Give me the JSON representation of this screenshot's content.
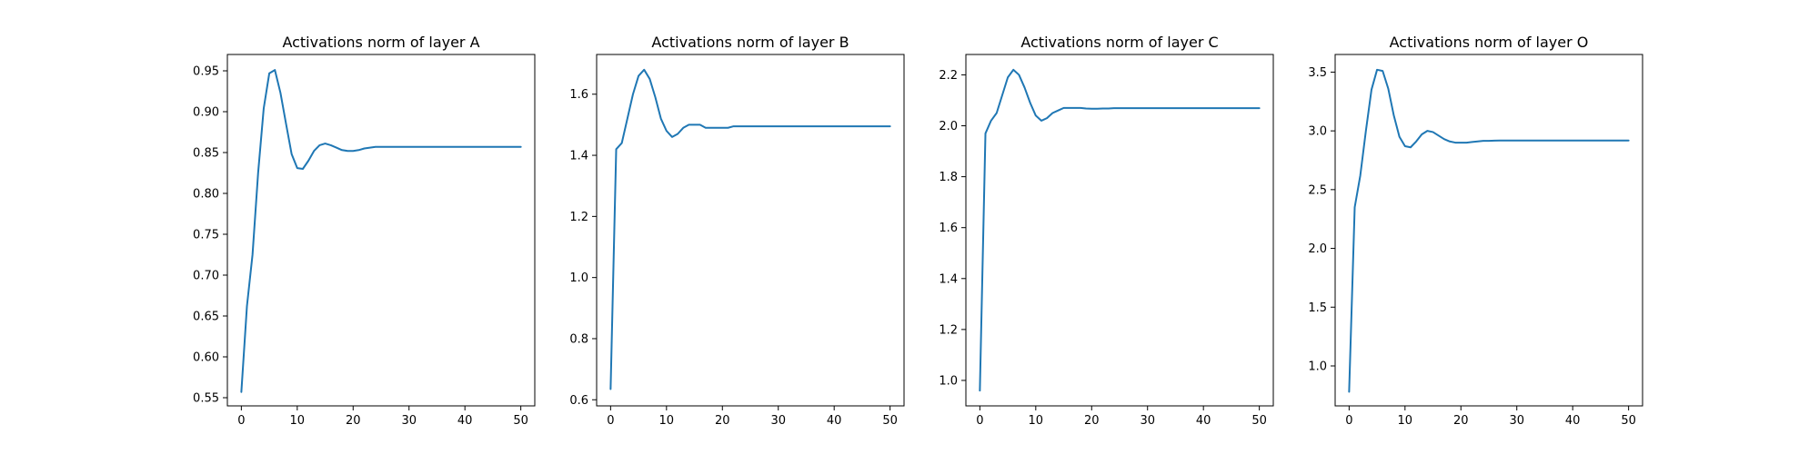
{
  "figure": {
    "background": "#ffffff",
    "line_color": "#1f77b4"
  },
  "chart_data": [
    {
      "type": "line",
      "title": "Activations norm of layer A",
      "xlabel": "",
      "ylabel": "",
      "xlim": [
        -2.5,
        52.5
      ],
      "ylim": [
        0.54,
        0.97
      ],
      "xticks": [
        0,
        10,
        20,
        30,
        40,
        50
      ],
      "yticks": [
        0.55,
        0.6,
        0.65,
        0.7,
        0.75,
        0.8,
        0.85,
        0.9,
        0.95
      ],
      "ytick_labels": [
        "0.55",
        "0.60",
        "0.65",
        "0.70",
        "0.75",
        "0.80",
        "0.85",
        "0.90",
        "0.95"
      ],
      "grid": false,
      "series": [
        {
          "x": [
            0,
            1,
            2,
            3,
            4,
            5,
            6,
            7,
            8,
            9,
            10,
            11,
            12,
            13,
            14,
            15,
            16,
            17,
            18,
            19,
            20,
            21,
            22,
            23,
            24,
            25,
            26,
            27,
            28,
            29,
            30,
            31,
            32,
            33,
            34,
            35,
            36,
            37,
            38,
            39,
            40,
            41,
            42,
            43,
            44,
            45,
            46,
            47,
            48,
            49,
            50
          ],
          "values": [
            0.557,
            0.662,
            0.725,
            0.825,
            0.904,
            0.947,
            0.951,
            0.923,
            0.885,
            0.848,
            0.831,
            0.83,
            0.84,
            0.852,
            0.859,
            0.861,
            0.859,
            0.856,
            0.853,
            0.852,
            0.852,
            0.853,
            0.855,
            0.856,
            0.857,
            0.857,
            0.857,
            0.857,
            0.857,
            0.857,
            0.857,
            0.857,
            0.857,
            0.857,
            0.857,
            0.857,
            0.857,
            0.857,
            0.857,
            0.857,
            0.857,
            0.857,
            0.857,
            0.857,
            0.857,
            0.857,
            0.857,
            0.857,
            0.857,
            0.857,
            0.857
          ]
        }
      ]
    },
    {
      "type": "line",
      "title": "Activations norm of layer B",
      "xlabel": "",
      "ylabel": "",
      "xlim": [
        -2.5,
        52.5
      ],
      "ylim": [
        0.58,
        1.73
      ],
      "xticks": [
        0,
        10,
        20,
        30,
        40,
        50
      ],
      "yticks": [
        0.6,
        0.8,
        1.0,
        1.2,
        1.4,
        1.6
      ],
      "ytick_labels": [
        "0.6",
        "0.8",
        "1.0",
        "1.2",
        "1.4",
        "1.6"
      ],
      "grid": false,
      "series": [
        {
          "x": [
            0,
            1,
            2,
            3,
            4,
            5,
            6,
            7,
            8,
            9,
            10,
            11,
            12,
            13,
            14,
            15,
            16,
            17,
            18,
            19,
            20,
            21,
            22,
            23,
            24,
            25,
            26,
            27,
            28,
            29,
            30,
            31,
            32,
            33,
            34,
            35,
            36,
            37,
            38,
            39,
            40,
            41,
            42,
            43,
            44,
            45,
            46,
            47,
            48,
            49,
            50
          ],
          "values": [
            0.635,
            1.42,
            1.44,
            1.52,
            1.6,
            1.66,
            1.68,
            1.65,
            1.59,
            1.52,
            1.48,
            1.46,
            1.47,
            1.49,
            1.5,
            1.5,
            1.5,
            1.49,
            1.49,
            1.49,
            1.49,
            1.49,
            1.495,
            1.495,
            1.495,
            1.495,
            1.495,
            1.495,
            1.495,
            1.495,
            1.495,
            1.495,
            1.495,
            1.495,
            1.495,
            1.495,
            1.495,
            1.495,
            1.495,
            1.495,
            1.495,
            1.495,
            1.495,
            1.495,
            1.495,
            1.495,
            1.495,
            1.495,
            1.495,
            1.495,
            1.495
          ]
        }
      ]
    },
    {
      "type": "line",
      "title": "Activations norm of layer C",
      "xlabel": "",
      "ylabel": "",
      "xlim": [
        -2.5,
        52.5
      ],
      "ylim": [
        0.9,
        2.28
      ],
      "xticks": [
        0,
        10,
        20,
        30,
        40,
        50
      ],
      "yticks": [
        1.0,
        1.2,
        1.4,
        1.6,
        1.8,
        2.0,
        2.2
      ],
      "ytick_labels": [
        "1.0",
        "1.2",
        "1.4",
        "1.6",
        "1.8",
        "2.0",
        "2.2"
      ],
      "grid": false,
      "series": [
        {
          "x": [
            0,
            1,
            2,
            3,
            4,
            5,
            6,
            7,
            8,
            9,
            10,
            11,
            12,
            13,
            14,
            15,
            16,
            17,
            18,
            19,
            20,
            21,
            22,
            23,
            24,
            25,
            26,
            27,
            28,
            29,
            30,
            31,
            32,
            33,
            34,
            35,
            36,
            37,
            38,
            39,
            40,
            41,
            42,
            43,
            44,
            45,
            46,
            47,
            48,
            49,
            50
          ],
          "values": [
            0.96,
            1.97,
            2.02,
            2.05,
            2.12,
            2.19,
            2.22,
            2.2,
            2.15,
            2.09,
            2.04,
            2.02,
            2.03,
            2.05,
            2.06,
            2.07,
            2.07,
            2.07,
            2.07,
            2.068,
            2.067,
            2.067,
            2.068,
            2.068,
            2.069,
            2.069,
            2.069,
            2.069,
            2.069,
            2.069,
            2.069,
            2.069,
            2.069,
            2.069,
            2.069,
            2.069,
            2.069,
            2.069,
            2.069,
            2.069,
            2.069,
            2.069,
            2.069,
            2.069,
            2.069,
            2.069,
            2.069,
            2.069,
            2.069,
            2.069,
            2.069
          ]
        }
      ]
    },
    {
      "type": "line",
      "title": "Activations norm of layer O",
      "xlabel": "",
      "ylabel": "",
      "xlim": [
        -2.5,
        52.5
      ],
      "ylim": [
        0.66,
        3.65
      ],
      "xticks": [
        0,
        10,
        20,
        30,
        40,
        50
      ],
      "yticks": [
        1.0,
        1.5,
        2.0,
        2.5,
        3.0,
        3.5
      ],
      "ytick_labels": [
        "1.0",
        "1.5",
        "2.0",
        "2.5",
        "3.0",
        "3.5"
      ],
      "grid": false,
      "series": [
        {
          "x": [
            0,
            1,
            2,
            3,
            4,
            5,
            6,
            7,
            8,
            9,
            10,
            11,
            12,
            13,
            14,
            15,
            16,
            17,
            18,
            19,
            20,
            21,
            22,
            23,
            24,
            25,
            26,
            27,
            28,
            29,
            30,
            31,
            32,
            33,
            34,
            35,
            36,
            37,
            38,
            39,
            40,
            41,
            42,
            43,
            44,
            45,
            46,
            47,
            48,
            49,
            50
          ],
          "values": [
            0.78,
            2.35,
            2.62,
            3.0,
            3.35,
            3.52,
            3.51,
            3.36,
            3.13,
            2.95,
            2.87,
            2.86,
            2.91,
            2.97,
            3.0,
            2.99,
            2.96,
            2.93,
            2.91,
            2.9,
            2.9,
            2.9,
            2.905,
            2.91,
            2.915,
            2.915,
            2.917,
            2.918,
            2.918,
            2.918,
            2.918,
            2.918,
            2.918,
            2.918,
            2.918,
            2.918,
            2.918,
            2.918,
            2.918,
            2.918,
            2.918,
            2.918,
            2.918,
            2.918,
            2.918,
            2.918,
            2.918,
            2.918,
            2.918,
            2.918,
            2.918
          ]
        }
      ]
    }
  ]
}
